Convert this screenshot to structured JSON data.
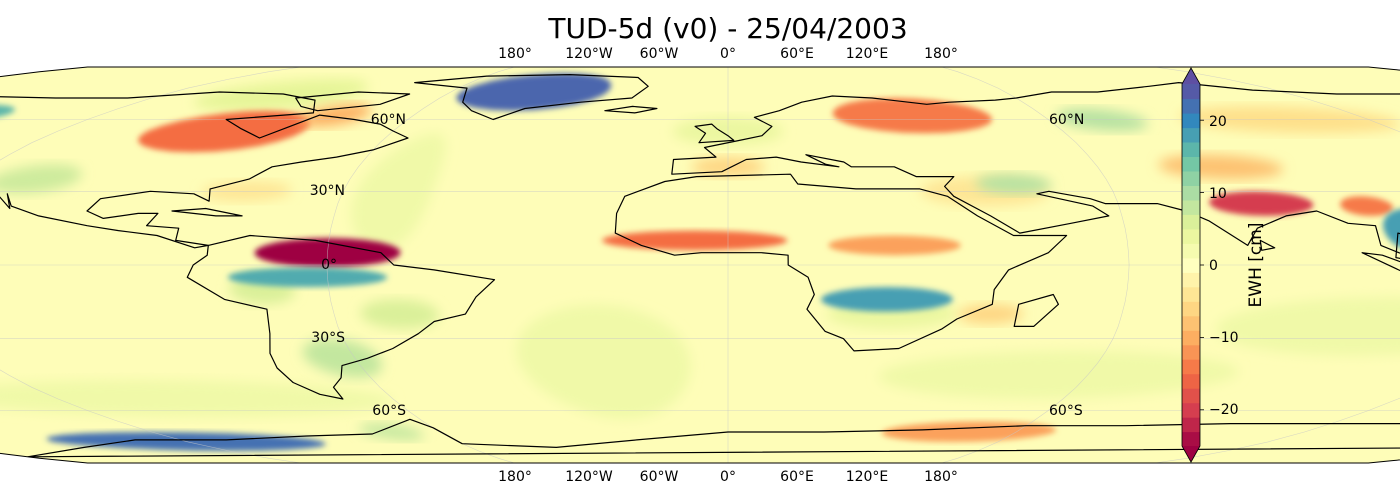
{
  "title": "TUD-5d (v0) - 25/04/2003",
  "map": {
    "projection": "Robinson",
    "longitude_labels_top": [
      "180°",
      "120°W",
      "60°W",
      "0°",
      "60°E",
      "120°E",
      "180°"
    ],
    "longitude_labels_bottom": [
      "180°",
      "120°W",
      "60°W",
      "0°",
      "60°E",
      "120°E",
      "180°"
    ],
    "latitude_labels_left": [
      "60°N",
      "30°N",
      "0°",
      "30°S",
      "60°S"
    ],
    "latitude_labels_right": [
      "60°N",
      "60°S"
    ],
    "gridlines": true,
    "colors": {
      "background": "#fefdb8",
      "coastline": "#000000",
      "grid": "#c8c8c8"
    }
  },
  "colorbar": {
    "label": "EWH [cm]",
    "ticks": [
      "20",
      "10",
      "0",
      "−10",
      "−20"
    ],
    "tick_values": [
      20,
      10,
      0,
      -10,
      -20
    ],
    "range": [
      -25,
      25
    ],
    "colormap": "Spectral",
    "extend": "both",
    "colors_bottom_to_top": [
      "#9e0142",
      "#d53e4f",
      "#f46d43",
      "#fdae61",
      "#fee08b",
      "#ffffbf",
      "#e6f598",
      "#abdda4",
      "#66c2a5",
      "#3288bd",
      "#5e4fa2"
    ]
  }
}
